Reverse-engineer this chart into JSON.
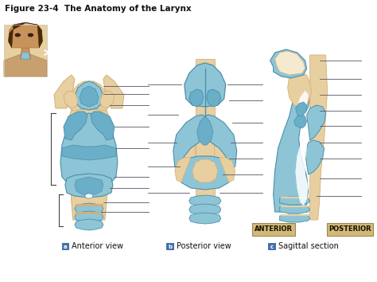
{
  "title": "Figure 23-4  The Anatomy of the Larynx",
  "bg_color": "#ffffff",
  "blue_light": "#8ec5d6",
  "blue_mid": "#6aaec8",
  "blue_dark": "#4a8faa",
  "tan_light": "#e8cfa0",
  "tan_mid": "#d4b078",
  "tan_dark": "#b89060",
  "white": "#ffffff",
  "cream": "#f5ead0",
  "label_a": "Anterior view",
  "label_b": "Posterior view",
  "label_c": "Sagittal section",
  "anterior_box_text": "ANTERIOR",
  "posterior_box_text": "POSTERIOR",
  "box_bg": "#d4b878",
  "title_fontsize": 7.5,
  "label_fontsize": 7.0,
  "line_color": "#555566",
  "line_lw": 0.6
}
